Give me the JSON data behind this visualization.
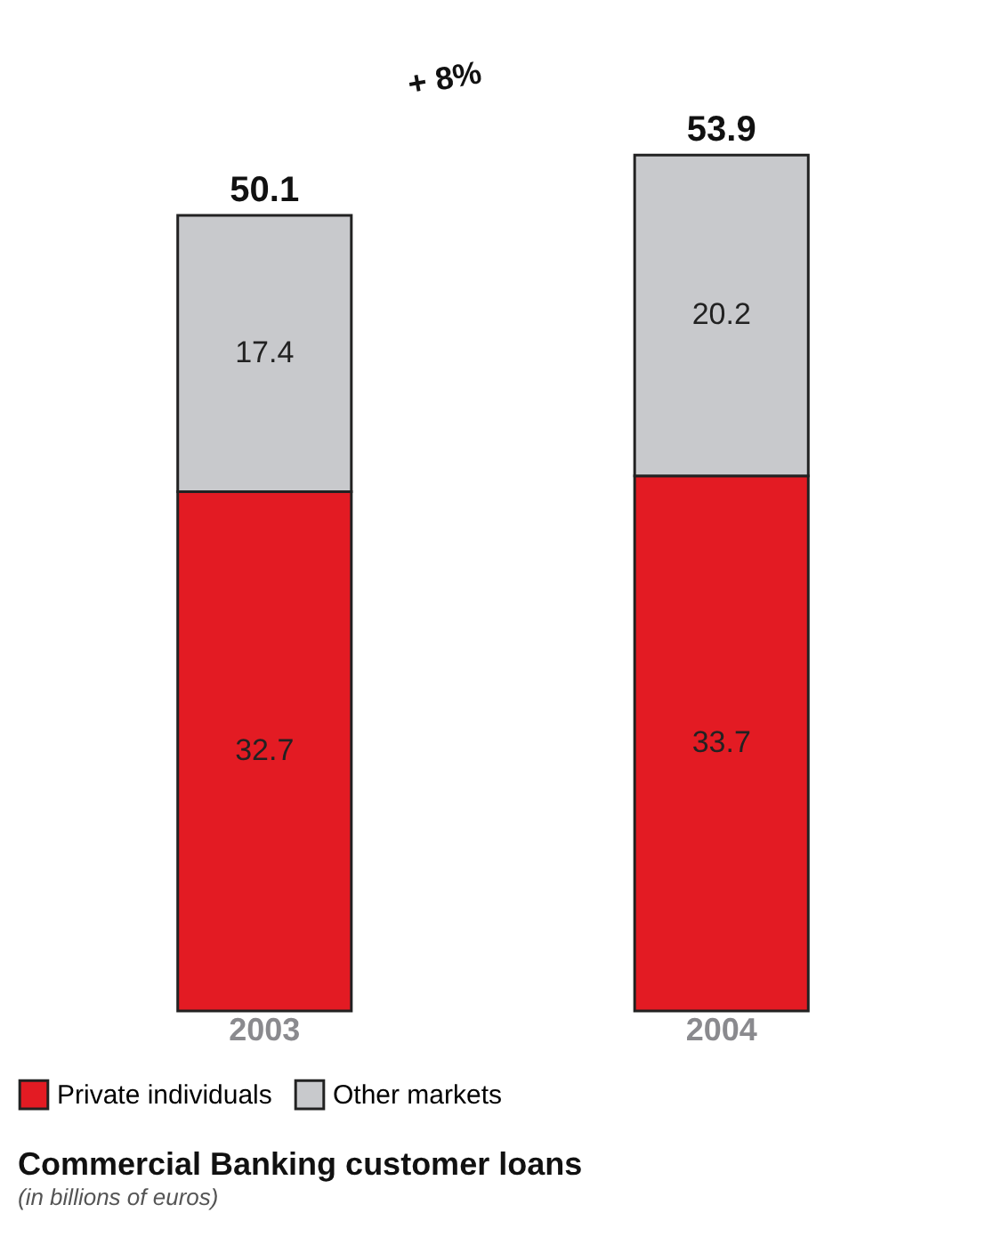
{
  "chart_data": {
    "type": "bar",
    "stacked": true,
    "title": "Commercial Banking customer loans",
    "subtitle": "(in billions of euros)",
    "categories": [
      "2003",
      "2004"
    ],
    "series": [
      {
        "name": "Private individuals",
        "color": "#e31b23",
        "values": [
          32.7,
          33.7
        ]
      },
      {
        "name": "Other markets",
        "color": "#c8c9cc",
        "values": [
          17.4,
          20.2
        ]
      }
    ],
    "data_labels": true,
    "totals": [
      "50.1",
      "53.9"
    ],
    "annotations": [
      "+ 8%"
    ],
    "legend": "bottom",
    "grid": false
  }
}
